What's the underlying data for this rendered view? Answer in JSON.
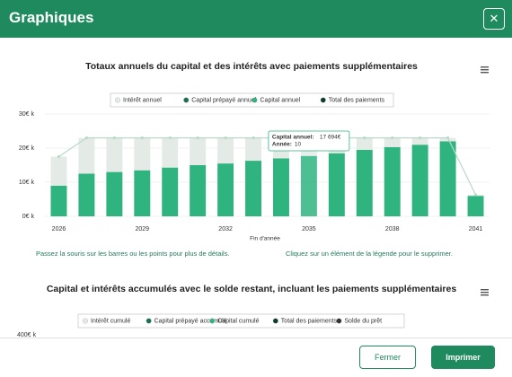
{
  "header": {
    "title": "Graphiques",
    "close": "✕"
  },
  "chart_data": [
    {
      "type": "bar",
      "title": "Totaux annuels du capital et des intérêts avec paiements supplémentaires",
      "categories": [
        "2026",
        null,
        null,
        "2029",
        null,
        null,
        "2032",
        null,
        null,
        "2035",
        null,
        null,
        "2038",
        null,
        null,
        "2041"
      ],
      "xlabel": "Fin d'année",
      "stacked": true,
      "series": [
        {
          "name": "Intérêt annuel",
          "color": "#e4ebe7",
          "values": [
            8.5,
            10.5,
            10,
            9.5,
            8.7,
            8,
            7.5,
            6.7,
            6,
            5.3,
            4.5,
            3.5,
            2.7,
            2,
            1,
            0.3
          ]
        },
        {
          "name": "Capital prépayé annuel",
          "color": "#17704f",
          "values": [
            0,
            0,
            0,
            0,
            0,
            0,
            0,
            0,
            0,
            0,
            0,
            0,
            0,
            0,
            0,
            0
          ]
        },
        {
          "name": "Capital annuel",
          "color": "#2fb47f",
          "values": [
            9,
            12.5,
            13,
            13.5,
            14.3,
            15,
            15.5,
            16.3,
            17,
            17.7,
            18.5,
            19.5,
            20.3,
            21,
            22,
            6
          ]
        },
        {
          "name": "Total des paiements",
          "type": "line",
          "color": "#0d3d2b",
          "line_color": "#b9d9c9",
          "values": [
            17.5,
            23,
            23,
            23,
            23,
            23,
            23,
            23,
            23,
            23,
            23,
            23,
            23,
            23,
            23,
            6.3
          ]
        }
      ],
      "ylim": [
        0,
        30
      ],
      "yticks": [
        {
          "value": 0,
          "label": "0€ k"
        },
        {
          "value": 10,
          "label": "10€ k"
        },
        {
          "value": 20,
          "label": "20€ k"
        },
        {
          "value": 30,
          "label": "30€ k"
        }
      ],
      "grid": true,
      "tooltip": {
        "index": 9,
        "label": "Capital annuel:",
        "value": "17 694€",
        "year_label": "Année:",
        "year": "10"
      }
    },
    {
      "type": "bar",
      "title": "Capital et intérêts accumulés avec le solde restant, incluant les paiements supplémentaires",
      "series": [
        {
          "name": "Intérêt cumulé",
          "color": "#e4ebe7"
        },
        {
          "name": "Capital prépayé accumulé",
          "color": "#17704f"
        },
        {
          "name": "Capital cumulé",
          "color": "#2fb47f"
        },
        {
          "name": "Total des paiements",
          "color": "#0d3d2b"
        },
        {
          "name": "Solde du prêt",
          "color": "#333333"
        }
      ],
      "yticks": [
        {
          "value": 400,
          "label": "400€ k"
        }
      ]
    }
  ],
  "notes": [
    "Passez la souris sur les barres ou les points pour plus de détails.",
    "Cliquez sur un élément de la légende pour le supprimer."
  ],
  "footer": {
    "cancel": "Fermer",
    "print": "Imprimer"
  }
}
